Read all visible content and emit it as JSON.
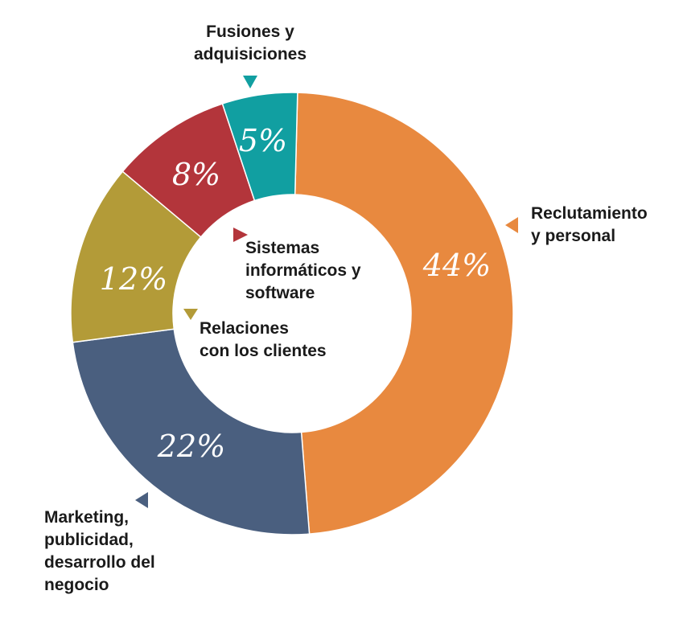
{
  "chart_data": {
    "type": "donut",
    "categories": [
      [
        "Reclutamiento",
        "y personal"
      ],
      [
        "Marketing,",
        "publicidad,",
        "desarrollo del",
        "negocio"
      ],
      [
        "Relaciones",
        "con los clientes"
      ],
      [
        "Sistemas",
        "informáticos y",
        "software"
      ],
      [
        "Fusiones y",
        "adquisiciones"
      ]
    ],
    "values": [
      44,
      22,
      12,
      8,
      5
    ],
    "value_labels": [
      "44%",
      "22%",
      "12%",
      "8%",
      "5%"
    ],
    "colors": [
      "#e8893f",
      "#4a5f7f",
      "#b39b38",
      "#b3353b",
      "#119fa1"
    ]
  }
}
